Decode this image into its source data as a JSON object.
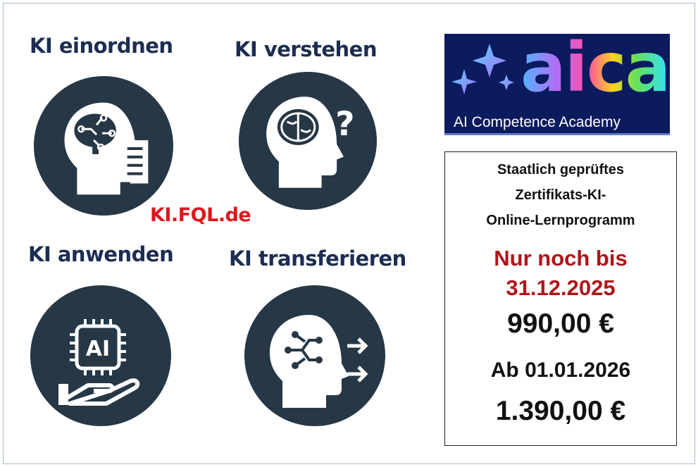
{
  "sections": [
    {
      "title": "KI einordnen",
      "icon": "head-circuit-document-icon"
    },
    {
      "title": "KI verstehen",
      "icon": "head-brain-question-icon"
    },
    {
      "title": "KI anwenden",
      "icon": "hand-ai-chip-icon"
    },
    {
      "title": "KI transferieren",
      "icon": "head-circuit-arrows-icon"
    }
  ],
  "watermark": "KI.FQL.de",
  "logo": {
    "word": "aica",
    "subtitle": "AI Competence Academy"
  },
  "offer": {
    "line1": "Staatlich geprüftes",
    "line2": "Zertifikats-KI-",
    "line3": "Online-Lernprogramm",
    "deadline_label": "Nur noch bis",
    "deadline_date": "31.12.2025",
    "current_price": "990,00 €",
    "future_label": "Ab 01.01.2026",
    "future_price": "1.390,00 €"
  },
  "colors": {
    "circle": "#263746",
    "heading": "#1c2d52",
    "accent_red": "#b0141a",
    "watermark_red": "#e0151d",
    "logo_bg": "#0c1a5e"
  }
}
